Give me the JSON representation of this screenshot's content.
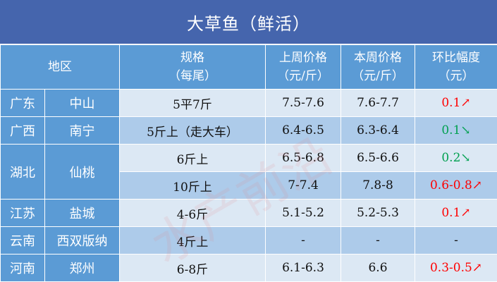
{
  "title": "大草鱼（鲜活）",
  "headers": {
    "region": "地区",
    "spec": "规格",
    "spec_unit": "（每尾）",
    "last": "上周价格",
    "last_unit": "（元/斤）",
    "this": "本周价格",
    "this_unit": "（元/斤）",
    "change": "环比幅度",
    "change_unit": "（元）"
  },
  "rows": [
    {
      "province": "广东",
      "city": "中山",
      "spec": "5平7斤",
      "last": "7.5-7.6",
      "this": "7.6-7.7",
      "change": "0.1↗",
      "trend": "up"
    },
    {
      "province": "广西",
      "city": "南宁",
      "spec": "5斤上（走大车）",
      "last": "6.4-6.5",
      "this": "6.3-6.4",
      "change": "0.1↘",
      "trend": "down"
    },
    {
      "province": "湖北",
      "city": "仙桃",
      "spec": "6斤上",
      "last": "6.5-6.8",
      "this": "6.5-6.6",
      "change": "0.2↘",
      "trend": "down"
    },
    {
      "spec": "10斤上",
      "last": "7-7.4",
      "this": "7.8-8",
      "change": "0.6-0.8↗",
      "trend": "up"
    },
    {
      "province": "江苏",
      "city": "盐城",
      "spec": "4-6斤",
      "last": "5.1-5.2",
      "this": "5.2-5.3",
      "change": "0.1↗",
      "trend": "up"
    },
    {
      "province": "云南",
      "city": "西双版纳",
      "spec": "4斤上",
      "last": "-",
      "this": "-",
      "change": "-",
      "trend": "none"
    },
    {
      "province": "河南",
      "city": "郑州",
      "spec": "6-8斤",
      "last": "6.1-6.3",
      "this": "6.6",
      "change": "0.3-0.5↗",
      "trend": "up"
    }
  ],
  "watermark": "水产前沿",
  "colors": {
    "up": "#ff0000",
    "down": "#00a050",
    "header": "#5b9bd5",
    "title_bar": "#4565ad"
  }
}
